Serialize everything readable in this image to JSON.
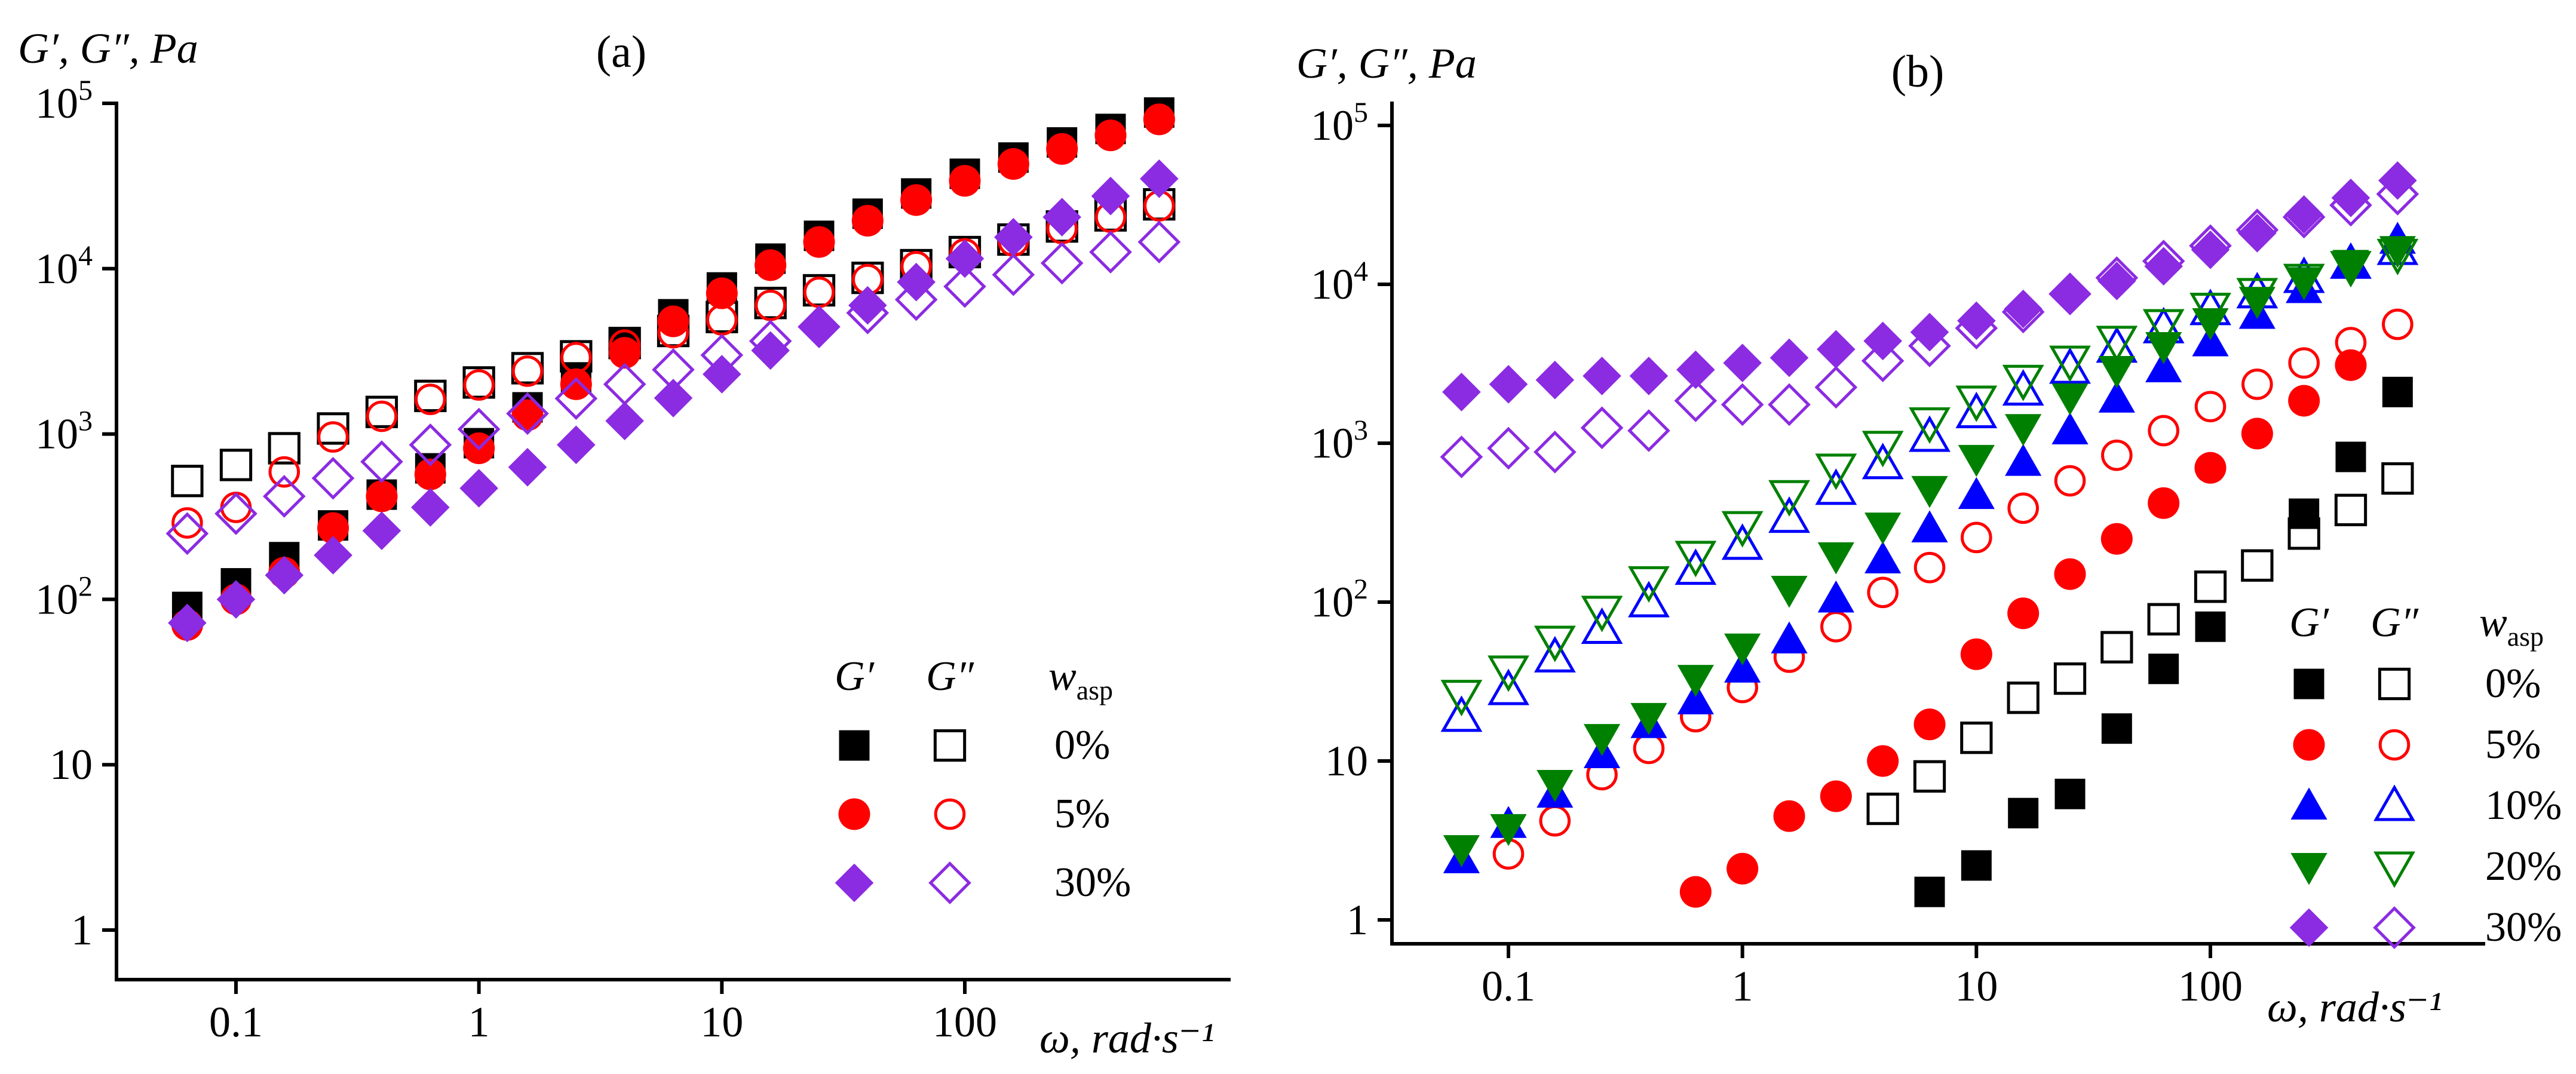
{
  "chart_data": [
    {
      "type": "scatter",
      "panel_label": "(a)",
      "ylabel": "G′, G″, Pa",
      "xlabel": "ω, rad·s⁻¹",
      "xscale": "log",
      "yscale": "log",
      "xlim": [
        0.03,
        800
      ],
      "ylim": [
        0.55,
        100000
      ],
      "xticks": [
        {
          "v": 0.1,
          "label": "0.1"
        },
        {
          "v": 1,
          "label": "1"
        },
        {
          "v": 10,
          "label": "10"
        },
        {
          "v": 100,
          "label": "100"
        }
      ],
      "yticks": [
        {
          "v": 1,
          "label": "1"
        },
        {
          "v": 10,
          "label": "10"
        },
        {
          "v": 100,
          "label": "10",
          "sup": "2"
        },
        {
          "v": 1000,
          "label": "10",
          "sup": "3"
        },
        {
          "v": 10000,
          "label": "10",
          "sup": "4"
        },
        {
          "v": 100000,
          "label": "10",
          "sup": "5"
        }
      ],
      "legend": {
        "location": "lower-right",
        "header": {
          "g1": "G′",
          "g2": "G″",
          "w": "w",
          "w_sub": "asp"
        },
        "entries": [
          {
            "label": "0%",
            "series": "0%"
          },
          {
            "label": "5%",
            "series": "5%"
          },
          {
            "label": "30%",
            "series": "30%"
          }
        ]
      },
      "series": [
        {
          "name": "0%",
          "color": "#000000",
          "marker": "square",
          "x": [
            0.063,
            0.1,
            0.158,
            0.251,
            0.398,
            0.631,
            1,
            1.585,
            2.512,
            3.981,
            6.31,
            10,
            15.85,
            25.12,
            39.81,
            63.1,
            100,
            158.5,
            251.2,
            398.1,
            631
          ],
          "g_prime": [
            90,
            125,
            180,
            280,
            430,
            620,
            880,
            1450,
            2200,
            3500,
            5300,
            7700,
            11500,
            15800,
            21500,
            28500,
            37500,
            47000,
            58000,
            70000,
            88000
          ],
          "g_double_prime": [
            520,
            650,
            820,
            1080,
            1360,
            1700,
            2050,
            2500,
            2950,
            3550,
            4200,
            5100,
            6200,
            7400,
            8800,
            10500,
            12600,
            15000,
            18000,
            21000,
            24500
          ]
        },
        {
          "name": "5%",
          "color": "#ff0000",
          "marker": "circle",
          "x": [
            0.063,
            0.1,
            0.158,
            0.251,
            0.398,
            0.631,
            1,
            1.585,
            2.512,
            3.981,
            6.31,
            10,
            15.85,
            25.12,
            39.81,
            63.1,
            100,
            158.5,
            251.2,
            398.1,
            631
          ],
          "g_prime": [
            70,
            100,
            145,
            270,
            420,
            570,
            820,
            1300,
            2000,
            3100,
            4800,
            7100,
            10500,
            14500,
            19500,
            26000,
            34000,
            43000,
            53000,
            64000,
            80000
          ],
          "g_double_prime": [
            290,
            360,
            590,
            960,
            1280,
            1620,
            1980,
            2400,
            2900,
            3450,
            4100,
            4900,
            6000,
            7200,
            8600,
            10300,
            12300,
            14700,
            17500,
            20500,
            24000
          ]
        },
        {
          "name": "30%",
          "color": "#8b2be2",
          "marker": "diamond",
          "x": [
            0.063,
            0.1,
            0.158,
            0.251,
            0.398,
            0.631,
            1,
            1.585,
            2.512,
            3.981,
            6.31,
            10,
            15.85,
            25.12,
            39.81,
            63.1,
            100,
            158.5,
            251.2,
            398.1,
            631
          ],
          "g_prime": [
            72,
            100,
            140,
            185,
            260,
            360,
            470,
            630,
            860,
            1200,
            1650,
            2300,
            3200,
            4400,
            6000,
            8300,
            11500,
            15500,
            20500,
            27500,
            35000
          ],
          "g_double_prime": [
            250,
            330,
            420,
            540,
            680,
            860,
            1070,
            1330,
            1640,
            2000,
            2450,
            3000,
            3650,
            4450,
            5400,
            6500,
            7800,
            9200,
            10800,
            12600,
            14500
          ]
        }
      ]
    },
    {
      "type": "scatter",
      "panel_label": "(b)",
      "ylabel": "G′, G″, Pa",
      "xlabel": "ω, rad·s⁻¹",
      "xscale": "log",
      "yscale": "log",
      "xlim": [
        0.03,
        1000
      ],
      "ylim": [
        0.4,
        100000
      ],
      "xticks": [
        {
          "v": 0.1,
          "label": "0.1"
        },
        {
          "v": 1,
          "label": "1"
        },
        {
          "v": 10,
          "label": "10"
        },
        {
          "v": 100,
          "label": "100"
        }
      ],
      "yticks": [
        {
          "v": 1,
          "label": "1"
        },
        {
          "v": 10,
          "label": "10"
        },
        {
          "v": 100,
          "label": "10",
          "sup": "2"
        },
        {
          "v": 1000,
          "label": "10",
          "sup": "3"
        },
        {
          "v": 10000,
          "label": "10",
          "sup": "4"
        },
        {
          "v": 100000,
          "label": "10",
          "sup": "5"
        }
      ],
      "legend": {
        "location": "right",
        "header": {
          "g1": "G′",
          "g2": "G″",
          "w": "w",
          "w_sub": "asp"
        },
        "entries": [
          {
            "label": "0%",
            "series": "0%"
          },
          {
            "label": "5%",
            "series": "5%"
          },
          {
            "label": "10%",
            "series": "10%"
          },
          {
            "label": "20%",
            "series": "20%"
          },
          {
            "label": "30%",
            "series": "30%"
          }
        ]
      },
      "series": [
        {
          "name": "0%",
          "color": "#000000",
          "marker": "square",
          "g_prime": {
            "x": [
              6.31,
              10,
              15.85,
              25.12,
              39.81,
              63.1,
              100,
              251.2,
              398.1,
              631
            ],
            "y": [
              1.5,
              2.2,
              4.7,
              6.2,
              16,
              38,
              70,
              360,
              820,
              2100
            ]
          },
          "g_double_prime": {
            "x": [
              3.981,
              6.31,
              10,
              15.85,
              25.12,
              39.81,
              63.1,
              100,
              158.5,
              251.2,
              398.1,
              631
            ],
            "y": [
              5,
              8,
              14,
              25,
              33,
              52,
              78,
              125,
              170,
              270,
              380,
              600
            ]
          }
        },
        {
          "name": "5%",
          "color": "#ff0000",
          "marker": "circle",
          "g_prime": {
            "x": [
              0.631,
              1,
              1.585,
              2.512,
              3.981,
              6.31,
              10,
              15.85,
              25.12,
              39.81,
              63.1,
              100,
              158.5,
              251.2,
              398.1
            ],
            "y": [
              1.5,
              2.1,
              4.5,
              6,
              10,
              17,
              47,
              85,
              150,
              250,
              420,
              700,
              1150,
              1850,
              3100
            ]
          },
          "g_double_prime": {
            "x": [
              0.1,
              0.158,
              0.251,
              0.398,
              0.631,
              1,
              1.585,
              2.512,
              3.981,
              6.31,
              10,
              15.85,
              25.12,
              39.81,
              63.1,
              100,
              158.5,
              251.2,
              398.1,
              631
            ],
            "y": [
              2.6,
              4.2,
              8.2,
              12,
              19,
              29,
              45,
              70,
              115,
              165,
              255,
              390,
              580,
              840,
              1200,
              1700,
              2350,
              3200,
              4300,
              5600
            ]
          }
        },
        {
          "name": "10%",
          "color": "#0000ff",
          "marker": "triangle-up",
          "g_prime": {
            "x": [
              0.063,
              0.1,
              0.158,
              0.251,
              0.398,
              0.631,
              1,
              1.585,
              2.512,
              3.981,
              6.31,
              10,
              15.85,
              25.12,
              39.81,
              63.1,
              100,
              158.5,
              251.2,
              398.1,
              631
            ],
            "y": [
              2.4,
              4,
              6.2,
              11,
              17,
              24,
              38,
              58,
              105,
              185,
              290,
              470,
              760,
              1200,
              1900,
              2950,
              4300,
              6400,
              9300,
              13500,
              19000
            ]
          },
          "g_double_prime": {
            "x": [
              0.063,
              0.1,
              0.158,
              0.251,
              0.398,
              0.631,
              1,
              1.585,
              2.512,
              3.981,
              6.31,
              10,
              15.85,
              25.12,
              39.81,
              63.1,
              100,
              158.5,
              251.2,
              398.1,
              631
            ],
            "y": [
              19,
              28,
              45,
              68,
              100,
              160,
              230,
              340,
              510,
              740,
              1100,
              1550,
              2150,
              2950,
              4000,
              5300,
              6900,
              8800,
              11000,
              13500,
              16500
            ]
          }
        },
        {
          "name": "20%",
          "color": "#008000",
          "marker": "triangle-down",
          "g_prime": {
            "x": [
              0.063,
              0.1,
              0.158,
              0.251,
              0.398,
              0.631,
              1,
              1.585,
              2.512,
              3.981,
              6.31,
              10,
              15.85,
              25.12,
              39.81,
              63.1,
              100,
              158.5,
              251.2,
              398.1,
              631
            ],
            "y": [
              2.8,
              3.8,
              7.2,
              14,
              19,
              33,
              52,
              120,
              195,
              300,
              510,
              800,
              1250,
              1950,
              2900,
              4100,
              5800,
              7900,
              10500,
              13500,
              16500
            ]
          },
          "g_double_prime": {
            "x": [
              0.063,
              0.1,
              0.158,
              0.251,
              0.398,
              0.631,
              1,
              1.585,
              2.512,
              3.981,
              6.31,
              10,
              15.85,
              25.12,
              39.81,
              63.1,
              100,
              158.5,
              251.2,
              398.1,
              631
            ],
            "y": [
              26,
              37,
              57,
              88,
              135,
              195,
              300,
              470,
              690,
              960,
              1350,
              1850,
              2500,
              3300,
              4400,
              5600,
              7100,
              8800,
              10800,
              13000,
              15500
            ]
          }
        },
        {
          "name": "30%",
          "color": "#8b2be2",
          "marker": "diamond",
          "g_prime": {
            "x": [
              0.063,
              0.1,
              0.158,
              0.251,
              0.398,
              0.631,
              1,
              1.585,
              2.512,
              3.981,
              6.31,
              10,
              15.85,
              25.12,
              39.81,
              63.1,
              100,
              158.5,
              251.2,
              398.1,
              631
            ],
            "y": [
              2100,
              2350,
              2500,
              2650,
              2650,
              2900,
              3200,
              3450,
              3900,
              4400,
              5000,
              5900,
              7000,
              8500,
              10500,
              13000,
              16500,
              21000,
              27500,
              35000,
              45000
            ]
          },
          "g_double_prime": {
            "x": [
              0.063,
              0.1,
              0.158,
              0.251,
              0.398,
              0.631,
              1,
              1.585,
              2.512,
              3.981,
              6.31,
              10,
              15.85,
              25.12,
              39.81,
              63.1,
              100,
              158.5,
              251.2,
              398.1,
              631
            ],
            "y": [
              820,
              930,
              880,
              1250,
              1200,
              1850,
              1750,
              1750,
              2250,
              3300,
              4100,
              5300,
              6700,
              8700,
              11000,
              14000,
              17500,
              22000,
              26500,
              31500,
              37000
            ]
          }
        }
      ]
    }
  ]
}
